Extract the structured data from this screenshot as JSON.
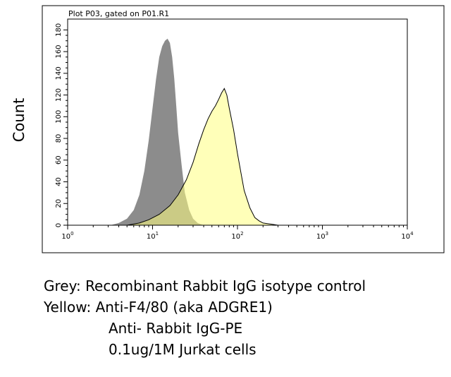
{
  "chart_data": {
    "type": "area",
    "title": "Plot P03, gated on P01.R1",
    "xlabel": "",
    "ylabel": "Count",
    "x_scale": "log",
    "xlim": [
      1,
      10000
    ],
    "ylim": [
      0,
      190
    ],
    "x_ticks": [
      {
        "value": 1,
        "base": "10",
        "exp": "0"
      },
      {
        "value": 10,
        "base": "10",
        "exp": "1"
      },
      {
        "value": 100,
        "base": "10",
        "exp": "2"
      },
      {
        "value": 1000,
        "base": "10",
        "exp": "3"
      },
      {
        "value": 10000,
        "base": "10",
        "exp": "4"
      }
    ],
    "y_ticks": [
      "0",
      "20",
      "40",
      "60",
      "80",
      "100",
      "120",
      "140",
      "160",
      "180"
    ],
    "series": [
      {
        "color": "#8c8c8c",
        "x": [
          3.2,
          4.0,
          5.0,
          6.0,
          7.0,
          8.0,
          9.0,
          10.0,
          11.0,
          12.0,
          13.0,
          14.0,
          15.0,
          16.0,
          17.0,
          18.0,
          19.0,
          20.0,
          22.0,
          24.0,
          27.0,
          30.0,
          34.0,
          40.0
        ],
        "y": [
          0,
          2,
          6,
          14,
          28,
          50,
          78,
          108,
          135,
          155,
          165,
          170,
          172,
          168,
          155,
          135,
          110,
          85,
          55,
          30,
          14,
          6,
          2,
          0
        ]
      },
      {
        "color": "#ffff80",
        "x": [
          5.0,
          7.0,
          9.0,
          12.0,
          16.0,
          20.0,
          25.0,
          30.0,
          35.0,
          40.0,
          45.0,
          50.0,
          55.0,
          60.0,
          65.0,
          70.0,
          75.0,
          80.0,
          90.0,
          100.0,
          110.0,
          120.0,
          140.0,
          160.0,
          180.0,
          200.0,
          250.0,
          300.0,
          350.0
        ],
        "y": [
          0,
          2,
          5,
          10,
          18,
          28,
          42,
          58,
          75,
          88,
          98,
          105,
          110,
          116,
          122,
          126,
          120,
          108,
          88,
          66,
          48,
          32,
          16,
          7,
          4,
          2,
          1,
          0,
          0
        ]
      }
    ]
  },
  "caption": {
    "line1": "Grey: Recombinant Rabbit IgG isotype control",
    "line2": "Yellow: Anti-F4/80 (aka ADGRE1)",
    "line3": "Anti- Rabbit IgG-PE",
    "line4": "0.1ug/1M Jurkat cells"
  }
}
